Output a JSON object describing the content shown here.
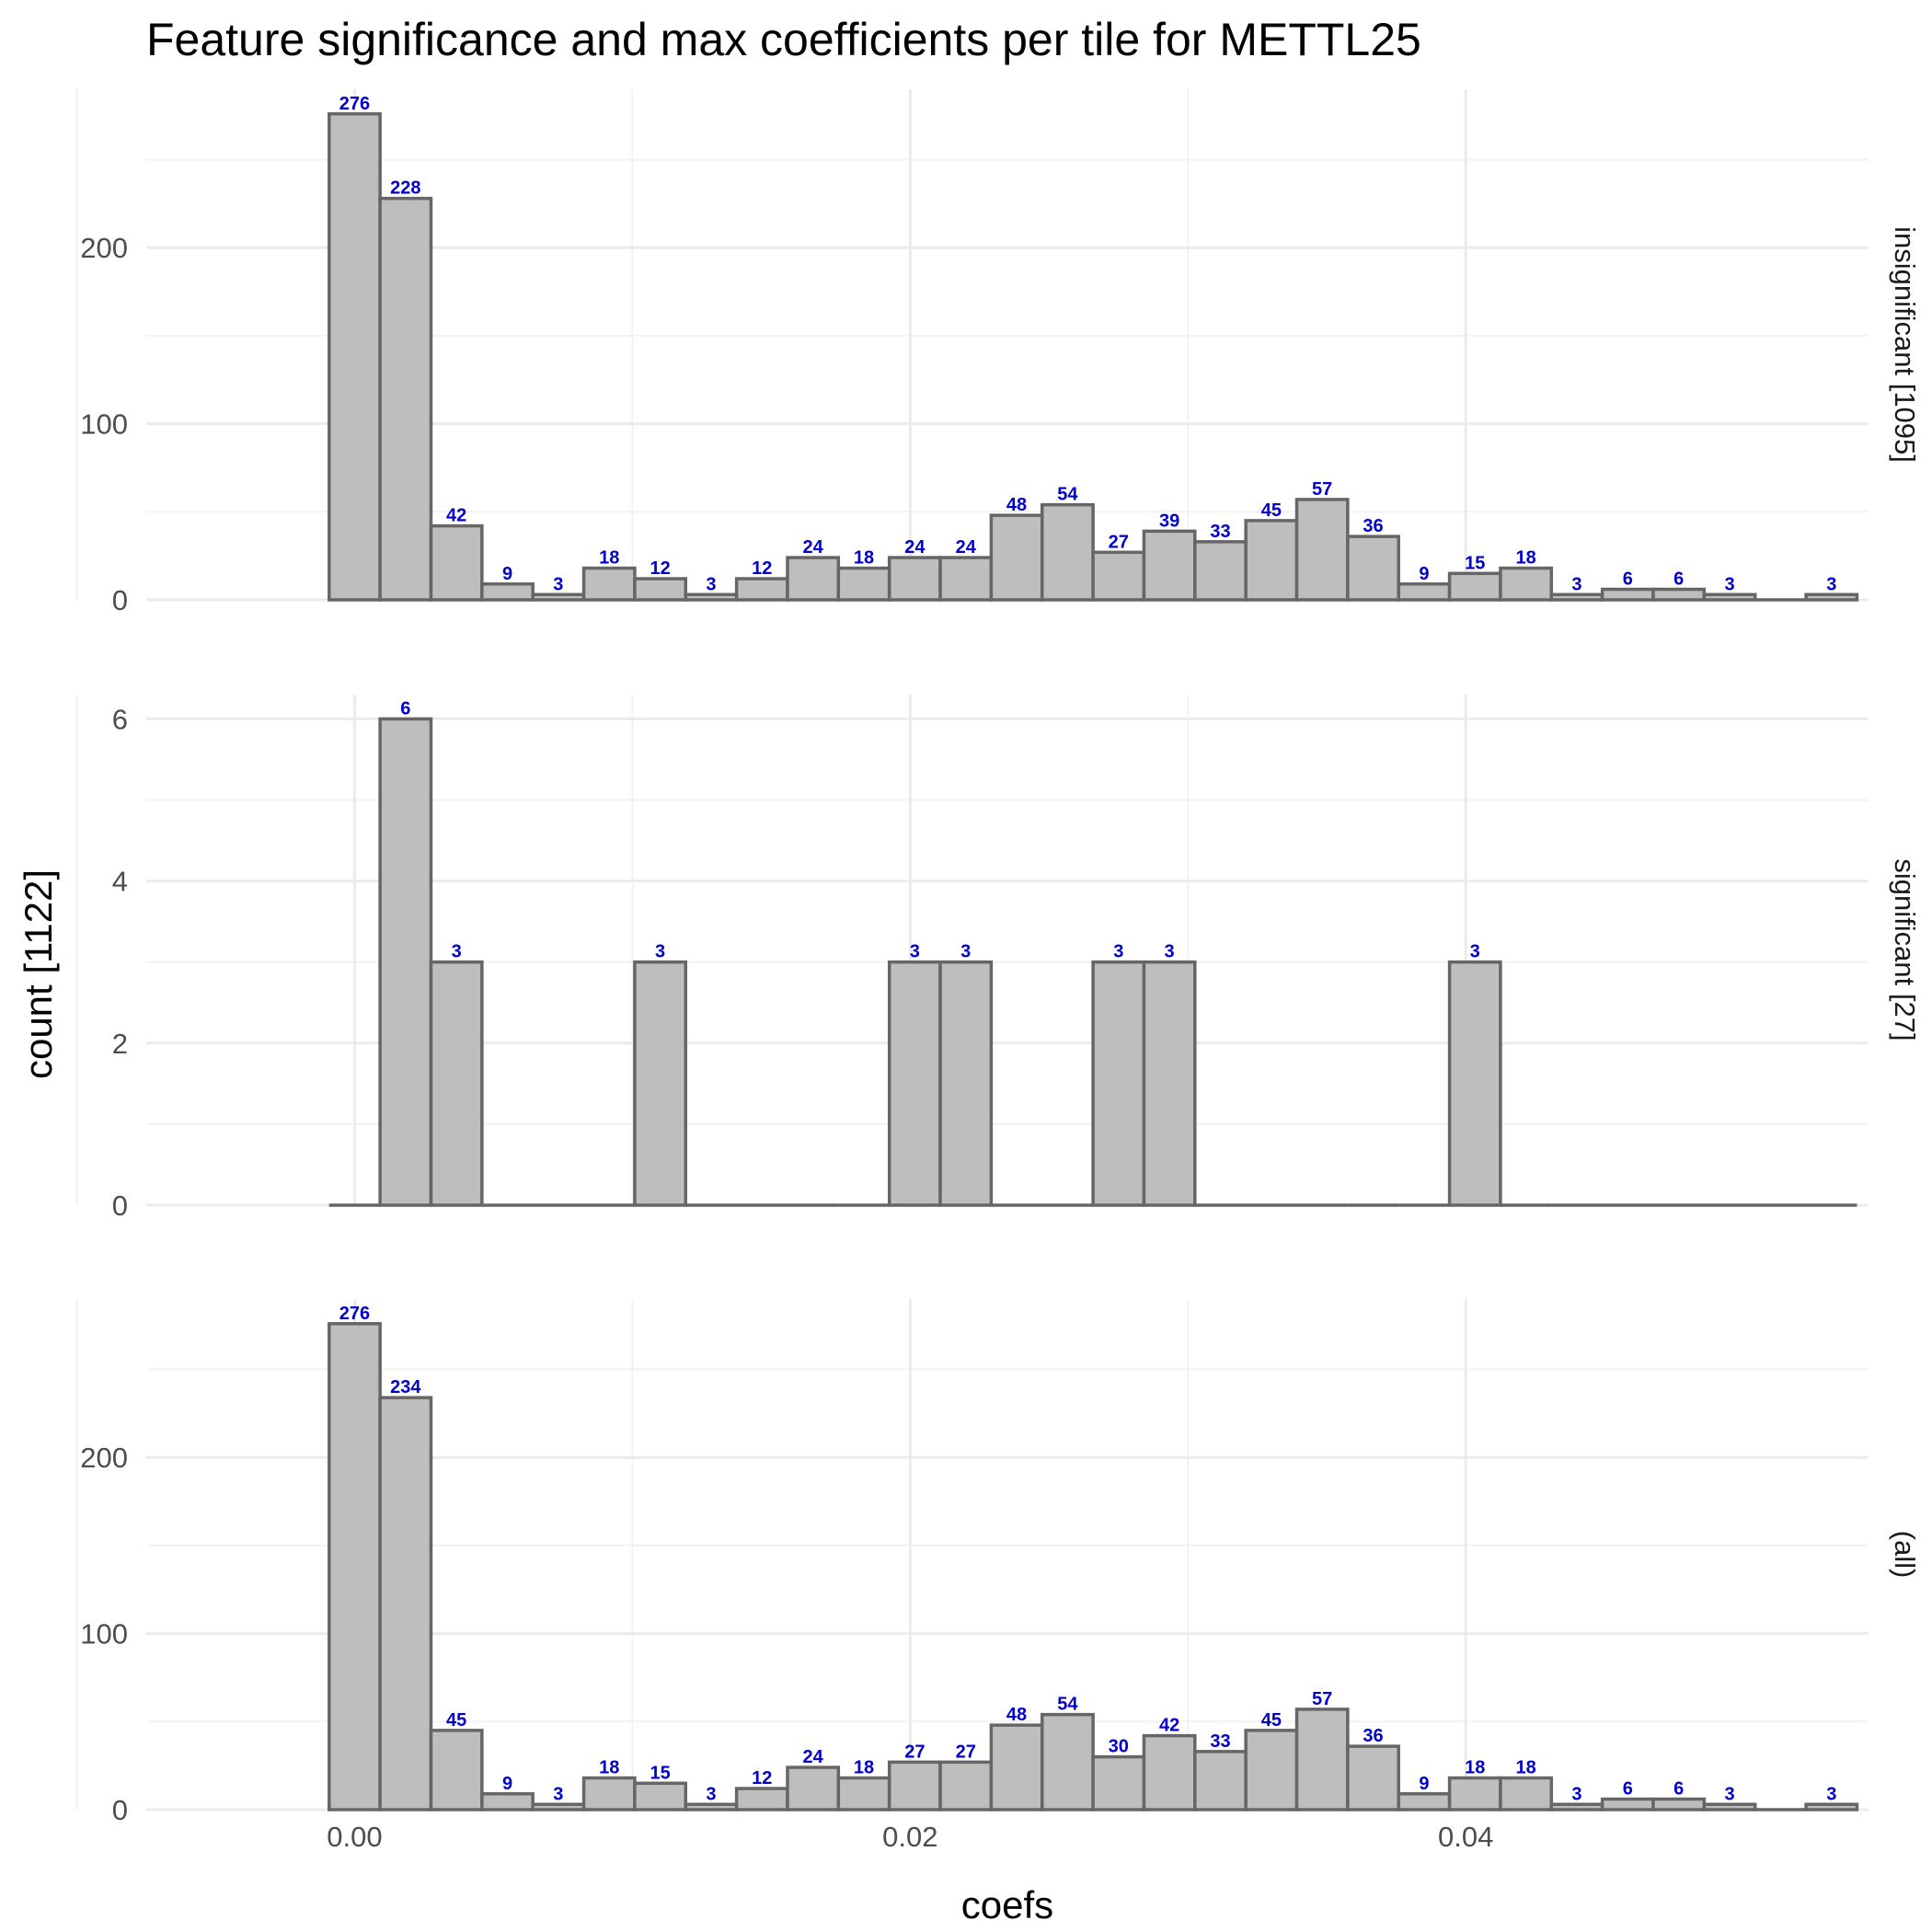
{
  "chart_data": {
    "type": "bar",
    "title": "Feature significance and max coefficients per tile for METTL25",
    "xlabel": "coefs",
    "ylabel": "count [1122]",
    "x_ticks": [
      "0.00",
      "0.02",
      "0.04"
    ],
    "x_tick_values": [
      0.0,
      0.02,
      0.04
    ],
    "bin_width": 0.001833,
    "bin_centers": [
      0.0,
      0.001833,
      0.003667,
      0.0055,
      0.007333,
      0.009167,
      0.011,
      0.012833,
      0.014667,
      0.0165,
      0.018333,
      0.020167,
      0.022,
      0.023833,
      0.025667,
      0.0275,
      0.029333,
      0.031167,
      0.033,
      0.034833,
      0.036667,
      0.0385,
      0.040333,
      0.042167,
      0.044,
      0.045833,
      0.047667,
      0.0495,
      0.051333,
      0.053167
    ],
    "xlim": [
      -0.0075,
      0.0545
    ],
    "grid": true,
    "panels": [
      {
        "strip": "insignificant [1095]",
        "ylim": [
          0,
          290
        ],
        "y_ticks": [
          0,
          100,
          200
        ],
        "y_tick_labels": [
          "0",
          "100",
          "200"
        ],
        "values": [
          276,
          228,
          42,
          9,
          3,
          18,
          12,
          3,
          12,
          24,
          18,
          24,
          24,
          48,
          54,
          27,
          39,
          33,
          45,
          57,
          36,
          9,
          15,
          18,
          3,
          6,
          6,
          3,
          0,
          3
        ]
      },
      {
        "strip": "significant [27]",
        "ylim": [
          0,
          6.3
        ],
        "y_ticks": [
          0,
          2,
          4,
          6
        ],
        "y_tick_labels": [
          "0",
          "2",
          "4",
          "6"
        ],
        "values": [
          0,
          6,
          3,
          0,
          0,
          0,
          3,
          0,
          0,
          0,
          0,
          3,
          3,
          0,
          0,
          3,
          3,
          0,
          0,
          0,
          0,
          0,
          3,
          0,
          0,
          0,
          0,
          0,
          0,
          0
        ]
      },
      {
        "strip": "(all)",
        "ylim": [
          0,
          290
        ],
        "y_ticks": [
          0,
          100,
          200
        ],
        "y_tick_labels": [
          "0",
          "100",
          "200"
        ],
        "values": [
          276,
          234,
          45,
          9,
          3,
          18,
          15,
          3,
          12,
          24,
          18,
          27,
          27,
          48,
          54,
          30,
          42,
          33,
          45,
          57,
          36,
          9,
          18,
          18,
          3,
          6,
          6,
          3,
          0,
          3
        ]
      }
    ]
  }
}
